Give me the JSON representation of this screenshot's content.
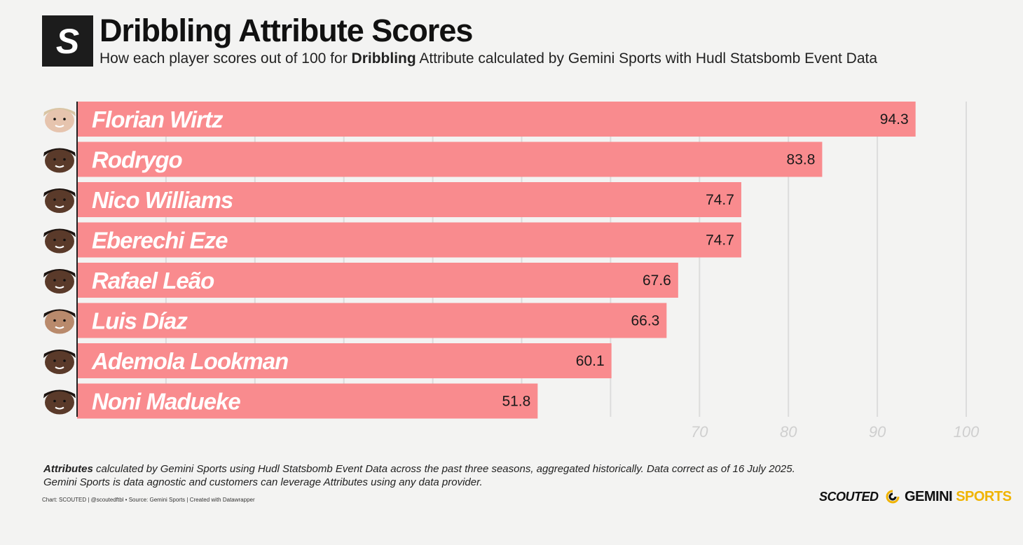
{
  "header": {
    "logo_letter": "S",
    "title": "Dribbling Attribute Scores",
    "subtitle_pre": "How each player scores out of 100 for ",
    "subtitle_bold": "Dribbling",
    "subtitle_post": " Attribute calculated by Gemini Sports with Hudl Statsbomb Event Data"
  },
  "chart_data": {
    "type": "bar",
    "orientation": "horizontal",
    "title": "Dribbling Attribute Scores",
    "categories": [
      "Florian Wirtz",
      "Rodrygo",
      "Nico Williams",
      "Eberechi Eze",
      "Rafael Leão",
      "Luis Díaz",
      "Ademola Lookman",
      "Noni Madueke"
    ],
    "values": [
      94.3,
      83.8,
      74.7,
      74.7,
      67.6,
      66.3,
      60.1,
      51.8
    ],
    "value_labels": [
      "94.3",
      "83.8",
      "74.7",
      "74.7",
      "67.6",
      "66.3",
      "60.1",
      "51.8"
    ],
    "xlim": [
      0,
      100
    ],
    "xticks": [
      70,
      80,
      90,
      100
    ],
    "xtick_labels": [
      "70",
      "80",
      "90",
      "100"
    ],
    "bar_color": "#f98b8e",
    "grid": true
  },
  "footer": {
    "note_bold": "Attributes",
    "note_line1": " calculated by Gemini Sports using Hudl Statsbomb Event Data across the past three seasons, aggregated historically. Data correct as of 16 July 2025.",
    "note_line2": "Gemini Sports is data agnostic and customers can leverage Attributes using any data provider.",
    "credit": "Chart: SCOUTED | @scoutedftbl • Source: Gemini Sports | Created with Datawrapper",
    "brand_scouted": "SCOUTED",
    "brand_gemini": "GEMINI",
    "brand_sports": "SPORTS",
    "gemini_accent": "#f0b300"
  }
}
